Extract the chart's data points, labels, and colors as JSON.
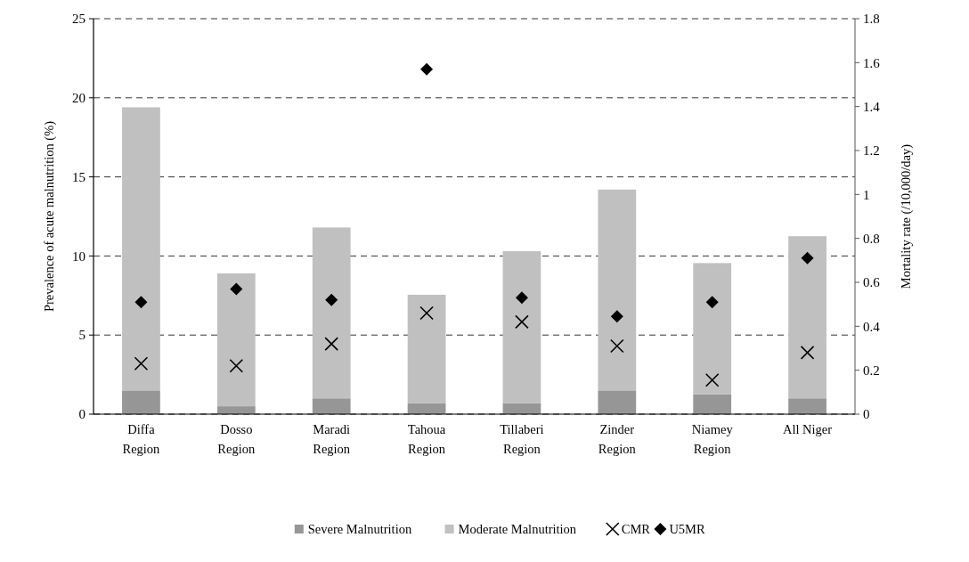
{
  "chart_data": {
    "type": "bar",
    "stacked": true,
    "ylabel": "Prevalence of acute malnutrition (%)",
    "y2label": "Mortality rate (/10,000/day)",
    "categories": [
      "Diffa Region",
      "Dosso Region",
      "Maradi Region",
      "Tahoua Region",
      "Tillaberi Region",
      "Zinder Region",
      "Niamey Region",
      "All Niger"
    ],
    "series": [
      {
        "name": "Severe Malnutrition",
        "color": "#969696",
        "values": [
          1.5,
          0.5,
          1.0,
          0.7,
          0.7,
          1.5,
          1.25,
          1.0
        ]
      },
      {
        "name": "Moderate Malnutrition",
        "color": "#c0c0c0",
        "values": [
          17.9,
          8.4,
          10.8,
          6.85,
          9.6,
          12.7,
          8.3,
          10.25
        ]
      },
      {
        "name": "CMR",
        "type": "scatter",
        "marker": "cross",
        "axis": "y2",
        "color": "#000000",
        "values": [
          0.23,
          0.22,
          0.32,
          0.46,
          0.42,
          0.31,
          0.155,
          0.28
        ]
      },
      {
        "name": "U5MR",
        "type": "scatter",
        "marker": "diamond",
        "axis": "y2",
        "color": "#000000",
        "values": [
          0.51,
          0.57,
          0.52,
          1.57,
          0.53,
          0.445,
          0.51,
          0.71
        ]
      }
    ],
    "ylim": [
      0,
      25
    ],
    "yticks": [
      0,
      5,
      10,
      15,
      20,
      25
    ],
    "y2lim": [
      0,
      1.8
    ],
    "y2ticks": [
      0,
      0.2,
      0.4,
      0.6,
      0.8,
      1,
      1.2,
      1.4,
      1.6,
      1.8
    ],
    "grid": "y",
    "legend": "bottom"
  }
}
